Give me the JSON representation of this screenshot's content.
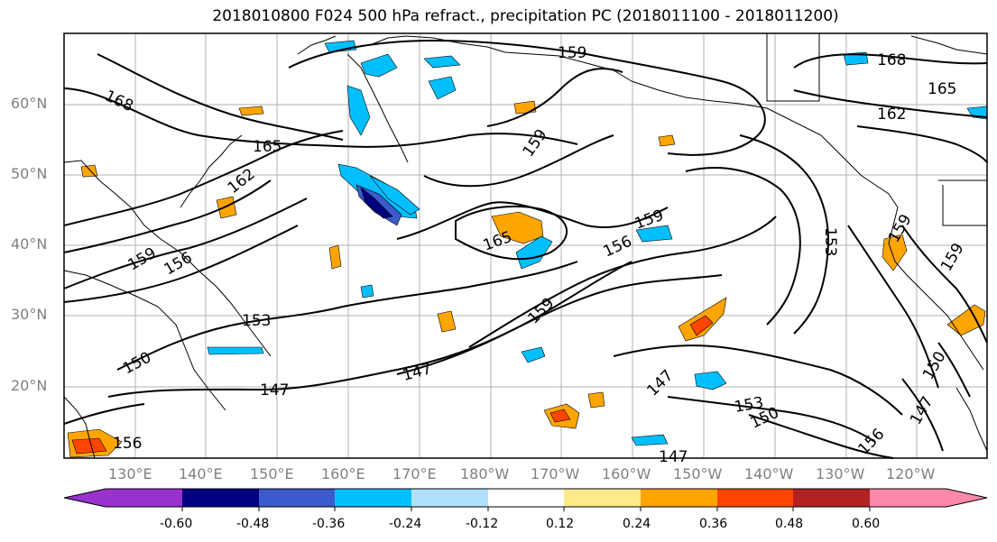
{
  "title": "2018010800 F024 500 hPa refract., precipitation PC (2018011100 - 2018011200)",
  "lat_labels": [
    "60°N",
    "50°N",
    "40°N",
    "30°N",
    "20°N"
  ],
  "lon_labels": [
    "130°E",
    "140°E",
    "150°E",
    "160°E",
    "170°E",
    "180°W",
    "170°W",
    "160°W",
    "150°W",
    "140°W",
    "130°W",
    "120°W"
  ],
  "contour_labels": [
    "168",
    "165",
    "162",
    "159",
    "156",
    "153",
    "150",
    "147",
    "165",
    "159",
    "159",
    "156",
    "159",
    "168",
    "165",
    "162",
    "153",
    "159",
    "159",
    "147",
    "147",
    "153",
    "150",
    "150",
    "147",
    "147",
    "156",
    "156"
  ],
  "colorbar": {
    "ticks": [
      "-0.60",
      "-0.48",
      "-0.36",
      "-0.24",
      "-0.12",
      "0.12",
      "0.24",
      "0.36",
      "0.48",
      "0.60"
    ],
    "colors": [
      "#9932cc",
      "#000080",
      "#3b5bcc",
      "#00bfff",
      "#b0e2ff",
      "#ffffff",
      "#ffe98a",
      "#ffa500",
      "#ff4500",
      "#b22222",
      "#ff88aa"
    ]
  }
}
